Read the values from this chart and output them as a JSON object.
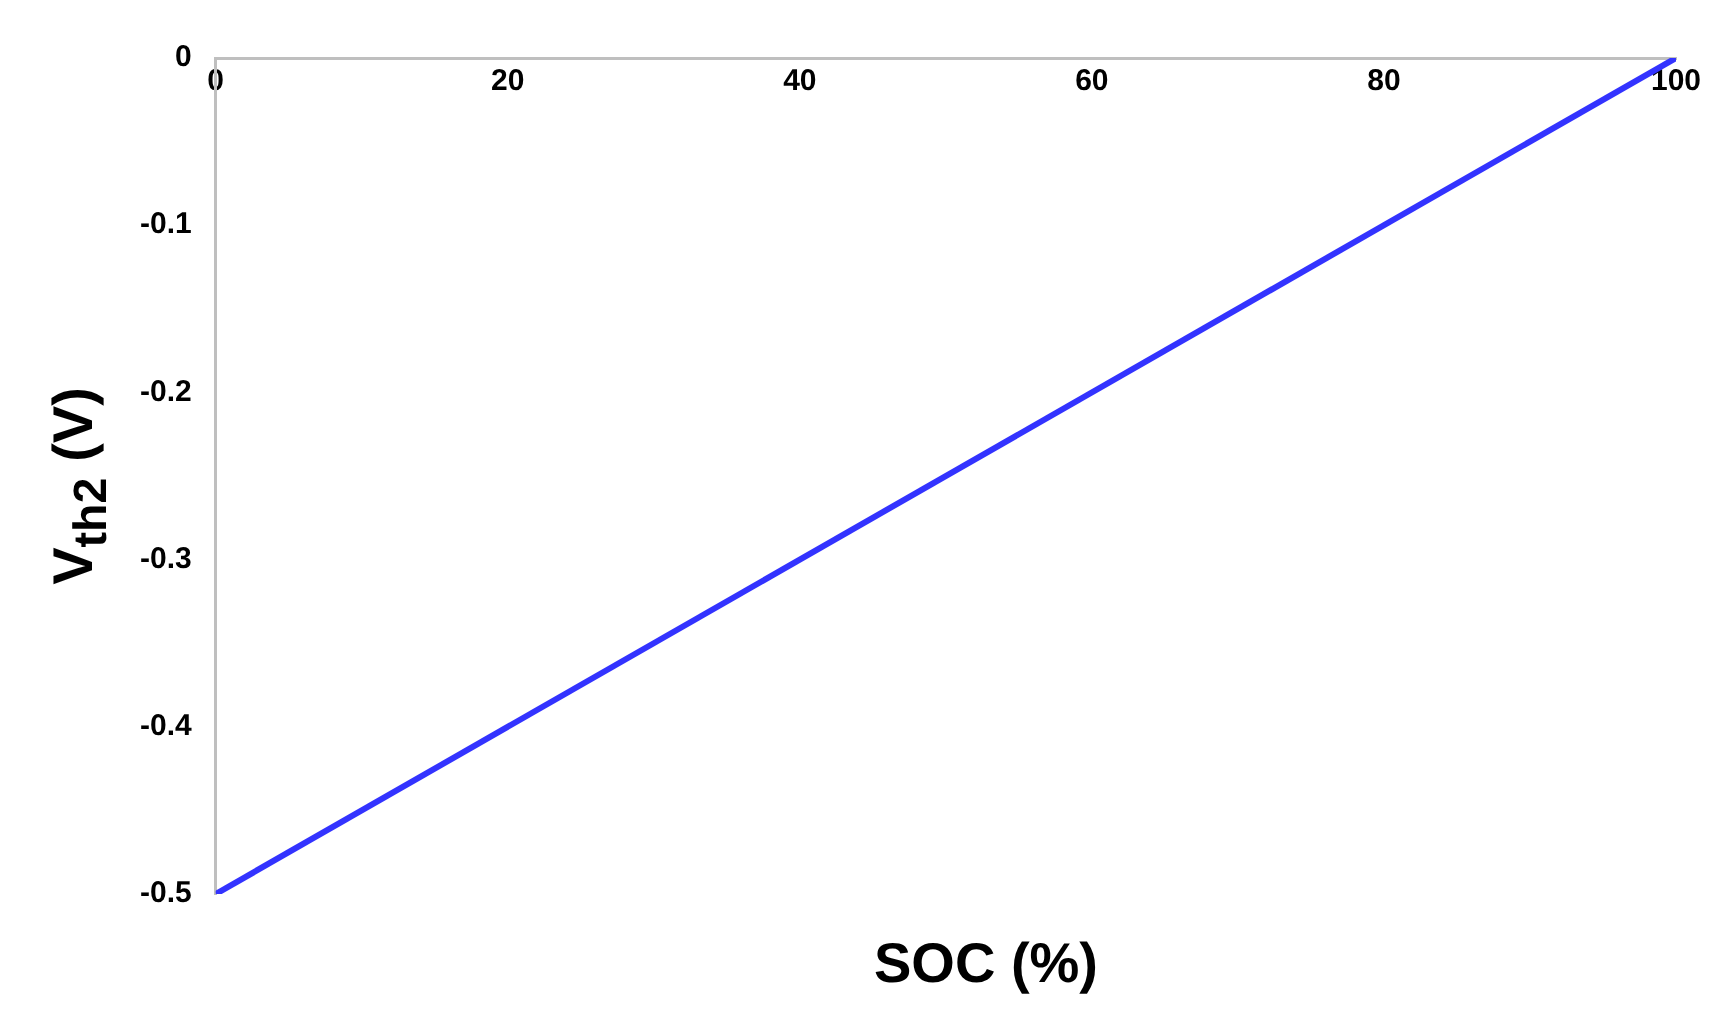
{
  "chart_data": {
    "type": "line",
    "xlabel": "SOC (%)",
    "ylabel": "V$_{th2}$ (V)",
    "x": [
      0,
      100
    ],
    "series": [
      {
        "color": "#3333ff",
        "values": [
          -0.5,
          0
        ]
      }
    ],
    "xlim": [
      0,
      100
    ],
    "xticks": [
      0,
      20,
      40,
      60,
      80,
      100
    ],
    "ylim": [
      -0.5,
      0
    ],
    "yticks": [
      -0.5,
      -0.4,
      -0.3,
      -0.2,
      -0.1,
      0
    ],
    "grid": false,
    "legend": false,
    "marker": "none",
    "line_style": "solid"
  }
}
